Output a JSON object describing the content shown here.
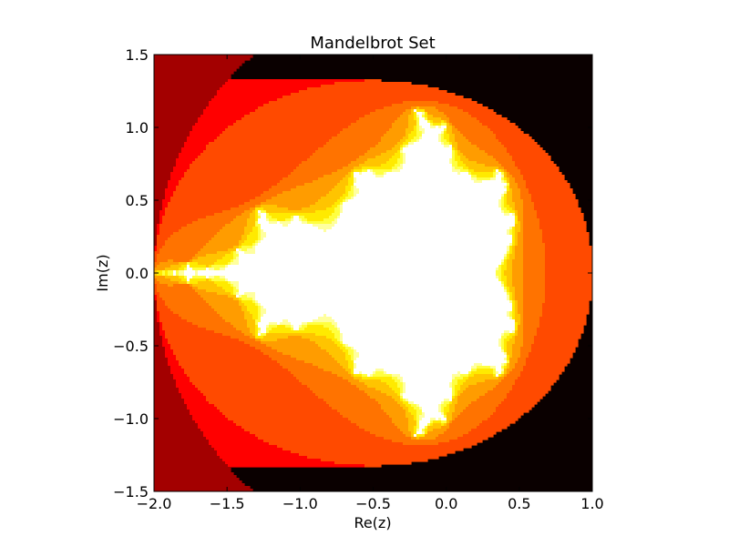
{
  "chart_data": {
    "type": "heatmap",
    "title": "Mandelbrot Set",
    "xlabel": "Re(z)",
    "ylabel": "Im(z)",
    "xlim": [
      -2.0,
      1.0
    ],
    "ylim": [
      -1.5,
      1.5
    ],
    "xticks": [
      "−2.0",
      "−1.5",
      "−1.0",
      "−0.5",
      "0.0",
      "0.5",
      "1.0"
    ],
    "yticks": [
      "1.5",
      "1.0",
      "0.5",
      "0.0",
      "−0.5",
      "−1.0",
      "−1.5"
    ],
    "grid": false,
    "colormap": "hot",
    "max_iterations": 10,
    "color_levels": [
      "#0a0000",
      "#a30000",
      "#ff0000",
      "#ff4a00",
      "#ff7300",
      "#ff9c00",
      "#ffc400",
      "#ffea00",
      "#ffff40",
      "#ffff9e",
      "#ffffff"
    ]
  }
}
